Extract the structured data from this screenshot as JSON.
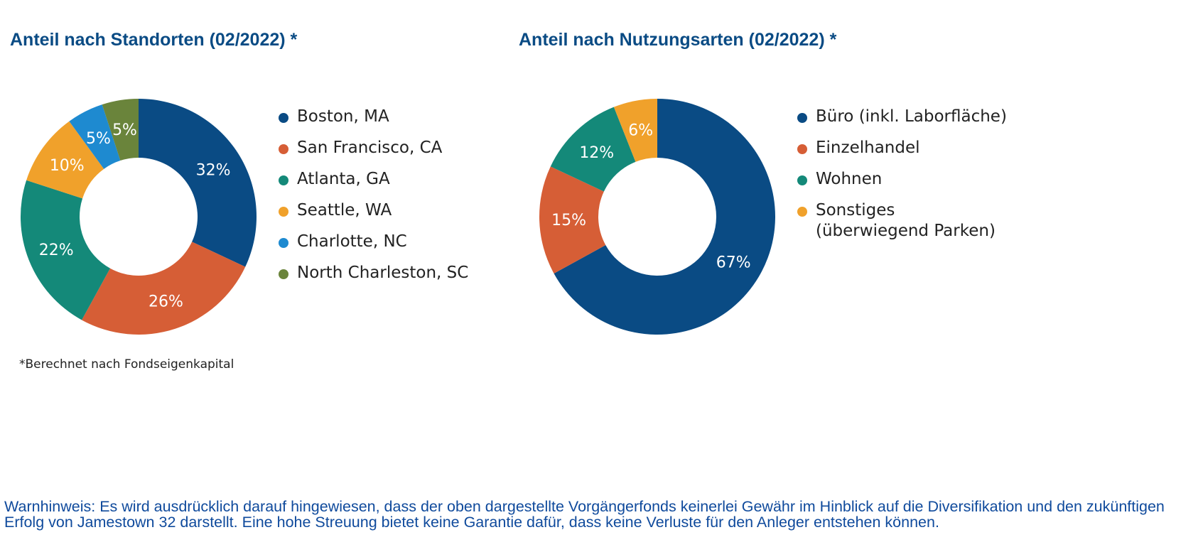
{
  "charts": [
    {
      "title": "Anteil nach Standorten (02/2022) *",
      "footnote": "*Berechnet nach Fondseigenkapital"
    },
    {
      "title": "Anteil nach Nutzungsarten (02/2022) *"
    }
  ],
  "chart_data": [
    {
      "type": "pie",
      "title": "Anteil nach Standorten (02/2022) *",
      "labels": [
        "Boston, MA",
        "San Francisco, CA",
        "Atlanta, GA",
        "Seattle, WA",
        "Charlotte, NC",
        "North Charleston, SC"
      ],
      "values": [
        32,
        26,
        22,
        10,
        5,
        5
      ],
      "value_labels": [
        "32%",
        "26%",
        "22%",
        "10%",
        "5%",
        "5%"
      ],
      "colors": [
        "#0a4b84",
        "#d65e36",
        "#148979",
        "#f0a12b",
        "#1e8ad0",
        "#6a843b"
      ],
      "legend_lines": [
        [
          "Boston, MA"
        ],
        [
          "San Francisco, CA"
        ],
        [
          "Atlanta, GA"
        ],
        [
          "Seattle, WA"
        ],
        [
          "Charlotte, NC"
        ],
        [
          "North Charleston, SC"
        ]
      ],
      "donut": true,
      "legend_position": "right"
    },
    {
      "type": "pie",
      "title": "Anteil nach Nutzungsarten (02/2022) *",
      "labels": [
        "Büro (inkl. Laborfläche)",
        "Einzelhandel",
        "Wohnen",
        "Sonstiges (überwiegend Parken)"
      ],
      "values": [
        67,
        15,
        12,
        6
      ],
      "value_labels": [
        "67%",
        "15%",
        "12%",
        "6%"
      ],
      "colors": [
        "#0a4b84",
        "#d65e36",
        "#148979",
        "#f0a12b"
      ],
      "legend_lines": [
        [
          "Büro (inkl. Laborfläche)"
        ],
        [
          "Einzelhandel"
        ],
        [
          "Wohnen"
        ],
        [
          "Sonstiges",
          "(überwiegend Parken)"
        ]
      ],
      "donut": true,
      "legend_position": "right"
    }
  ],
  "warning": "Warnhinweis: Es wird ausdrücklich darauf hingewiesen, dass der oben dargestellte Vorgängerfonds keinerlei Gewähr im Hinblick auf die Diversifikation und den zukünftigen Erfolg von Jamestown 32 darstellt. Eine hohe Streuung bietet keine Garantie dafür, dass keine Verluste für den Anleger entstehen können."
}
